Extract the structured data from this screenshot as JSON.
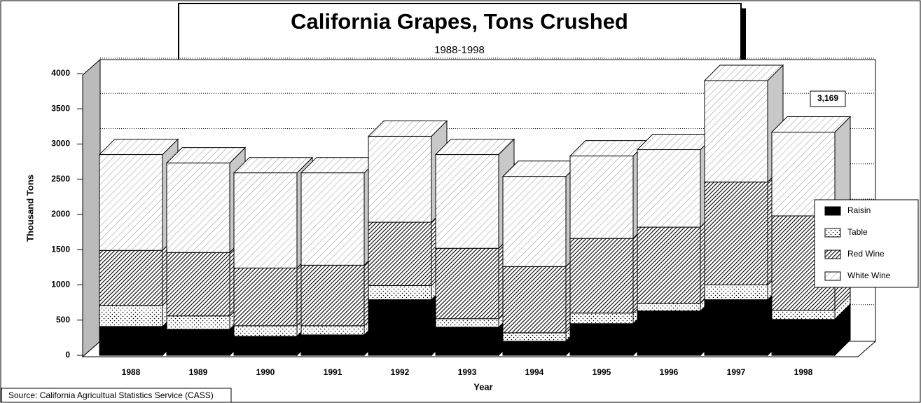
{
  "chart_data": {
    "type": "bar3d-stacked",
    "title": "California Grapes, Tons Crushed",
    "subtitle": "1988-1998",
    "y_label": "Thousand Tons",
    "x_label": "Year",
    "source": "Source:  California Agricultual Statistics Service (CASS)",
    "annotation": "3,169",
    "categories": [
      "1988",
      "1989",
      "1990",
      "1991",
      "1992",
      "1993",
      "1994",
      "1995",
      "1996",
      "1997",
      "1998"
    ],
    "series": [
      {
        "name": "Raisin",
        "pattern": "solid",
        "values": [
          410,
          370,
          270,
          290,
          790,
          400,
          200,
          450,
          630,
          790,
          510
        ]
      },
      {
        "name": "Table",
        "pattern": "dots",
        "values": [
          300,
          190,
          150,
          130,
          200,
          120,
          120,
          150,
          110,
          210,
          130
        ]
      },
      {
        "name": "Red Wine",
        "pattern": "dense-hatch",
        "values": [
          780,
          900,
          820,
          860,
          900,
          1000,
          940,
          1060,
          1080,
          1460,
          1340
        ]
      },
      {
        "name": "White Wine",
        "pattern": "sparse-hatch",
        "values": [
          1360,
          1270,
          1350,
          1310,
          1220,
          1330,
          1280,
          1170,
          1100,
          1440,
          1189
        ]
      }
    ],
    "ylim": [
      0,
      4000
    ],
    "yticks": [
      0,
      500,
      1000,
      1500,
      2000,
      2500,
      3000,
      3500,
      4000
    ],
    "grid": true,
    "legend": "right"
  }
}
